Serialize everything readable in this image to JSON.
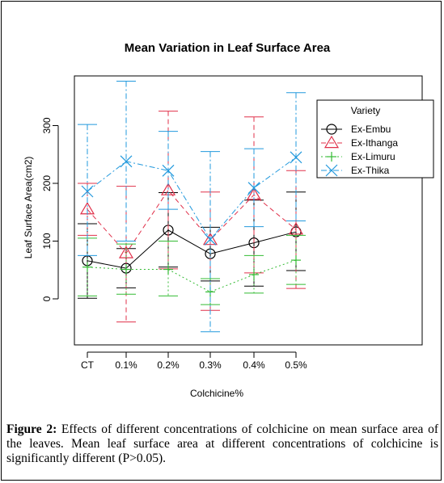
{
  "chart_data": {
    "type": "line",
    "title": "Mean Variation in Leaf Surface Area",
    "xlabel": "Colchicine%",
    "ylabel": "Leaf Surface Area(cm2)",
    "categories": [
      "CT",
      "0.1%",
      "0.2%",
      "0.3%",
      "0.4%",
      "0.5%"
    ],
    "y_ticks": [
      "0",
      "100",
      "200",
      "300"
    ],
    "ylim": [
      -80,
      390
    ],
    "legend_title": "Variety",
    "legend_position": "top-right",
    "series": [
      {
        "name": "Ex-Embu",
        "color": "#000000",
        "marker": "circle",
        "line": "solid",
        "values": [
          66,
          53,
          119,
          78,
          97,
          116
        ],
        "lower": [
          1,
          19,
          55,
          31,
          22,
          49
        ],
        "upper": [
          130,
          87,
          184,
          124,
          171,
          185
        ]
      },
      {
        "name": "Ex-Ithanga",
        "color": "#e0304a",
        "marker": "triangle",
        "line": "dashed",
        "values": [
          155,
          79,
          188,
          102,
          180,
          120
        ],
        "lower": [
          110,
          -40,
          52,
          -20,
          45,
          18
        ],
        "upper": [
          200,
          195,
          325,
          185,
          315,
          222
        ]
      },
      {
        "name": "Ex-Limuru",
        "color": "#33bb33",
        "marker": "plus",
        "line": "dotted",
        "values": [
          55,
          51,
          51,
          12,
          42,
          67
        ],
        "lower": [
          5,
          8,
          5,
          -10,
          10,
          25
        ],
        "upper": [
          105,
          95,
          100,
          35,
          75,
          110
        ]
      },
      {
        "name": "Ex-Thika",
        "color": "#2299dd",
        "marker": "x",
        "line": "dotdash",
        "values": [
          186,
          238,
          222,
          103,
          192,
          245
        ],
        "lower": [
          75,
          100,
          155,
          -57,
          125,
          135
        ],
        "upper": [
          302,
          377,
          290,
          255,
          260,
          357
        ]
      }
    ],
    "grid": false
  },
  "caption": {
    "label": "Figure 2:",
    "text": " Effects of different concentrations of colchicine on mean surface area of the leaves. Mean leaf surface area at different concentrations of colchicine is significantly different (P>0.05)."
  }
}
